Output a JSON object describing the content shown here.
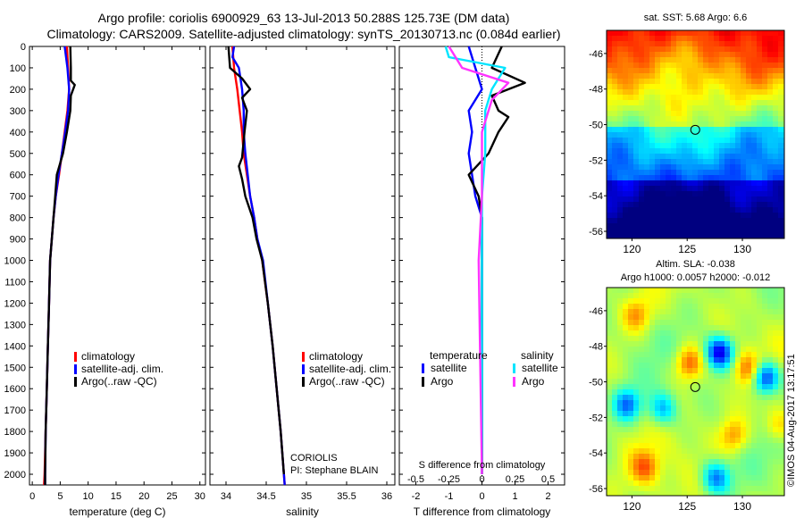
{
  "header": {
    "title_line1": "Argo profile: coriolis 6900929_63 13-Jul-2013 50.288S 125.73E (DM data)",
    "title_line2": "Climatology: CARS2009. Satellite-adjusted climatology: synTS_20130713.nc (0.084d earlier)"
  },
  "credit": "©IMOS 04-Aug-2017 13:17:51",
  "colors": {
    "climatology": "#ff0000",
    "satellite": "#0000ff",
    "argo": "#000000",
    "sal_satellite": "#00e5ff",
    "sal_argo": "#ff33ff"
  },
  "chart_data": [
    {
      "type": "line",
      "name": "temperature-panel",
      "xlabel": "temperature (deg C)",
      "xlim": [
        -0.5,
        31
      ],
      "xticks": [
        "0",
        "5",
        "10",
        "15",
        "20",
        "25",
        "30"
      ],
      "xtick_values": [
        0,
        5,
        10,
        15,
        20,
        25,
        30
      ],
      "ylim": [
        0,
        2050
      ],
      "yticks": [
        "0",
        "100",
        "200",
        "300",
        "400",
        "500",
        "600",
        "700",
        "800",
        "900",
        "1000",
        "1100",
        "1200",
        "1300",
        "1400",
        "1500",
        "1600",
        "1700",
        "1800",
        "1900",
        "2000"
      ],
      "legend": [
        "climatology",
        "satellite-adj. clim.",
        "Argo(..raw -QC)"
      ],
      "series": [
        {
          "name": "climatology",
          "color": "#ff0000",
          "points": [
            [
              6.2,
              0
            ],
            [
              6.4,
              100
            ],
            [
              6.6,
              200
            ],
            [
              6.3,
              300
            ],
            [
              5.8,
              400
            ],
            [
              5.3,
              500
            ],
            [
              4.8,
              600
            ],
            [
              4.2,
              700
            ],
            [
              3.8,
              800
            ],
            [
              3.5,
              900
            ],
            [
              3.2,
              1000
            ],
            [
              3.0,
              1200
            ],
            [
              2.8,
              1400
            ],
            [
              2.6,
              1600
            ],
            [
              2.4,
              1800
            ],
            [
              2.2,
              2000
            ],
            [
              2.1,
              2050
            ]
          ]
        },
        {
          "name": "satellite-adj. clim.",
          "color": "#0000ff",
          "points": [
            [
              5.8,
              0
            ],
            [
              6.3,
              100
            ],
            [
              6.6,
              200
            ],
            [
              6.4,
              300
            ],
            [
              5.9,
              400
            ],
            [
              5.3,
              500
            ],
            [
              4.7,
              600
            ],
            [
              4.2,
              700
            ],
            [
              3.8,
              800
            ],
            [
              3.5,
              900
            ],
            [
              3.2,
              1000
            ],
            [
              3.0,
              1200
            ],
            [
              2.8,
              1400
            ],
            [
              2.6,
              1600
            ],
            [
              2.4,
              1800
            ],
            [
              2.3,
              2000
            ],
            [
              2.3,
              2050
            ]
          ]
        },
        {
          "name": "Argo(..raw -QC)",
          "color": "#000000",
          "points": [
            [
              6.8,
              0
            ],
            [
              6.9,
              100
            ],
            [
              6.9,
              160
            ],
            [
              7.6,
              180
            ],
            [
              6.9,
              230
            ],
            [
              6.8,
              300
            ],
            [
              6.2,
              400
            ],
            [
              5.5,
              500
            ],
            [
              4.4,
              600
            ],
            [
              4.1,
              700
            ],
            [
              3.8,
              800
            ],
            [
              3.5,
              900
            ],
            [
              3.2,
              1000
            ],
            [
              3.0,
              1200
            ],
            [
              2.8,
              1400
            ],
            [
              2.6,
              1600
            ],
            [
              2.4,
              1800
            ],
            [
              2.3,
              2000
            ],
            [
              2.3,
              2050
            ]
          ]
        }
      ]
    },
    {
      "type": "line",
      "name": "salinity-panel",
      "xlabel": "salinity",
      "xlim": [
        33.8,
        36.1
      ],
      "xticks": [
        "34",
        "34.5",
        "35",
        "35.5",
        "36"
      ],
      "xtick_values": [
        34,
        34.5,
        35,
        35.5,
        36
      ],
      "ylim": [
        0,
        2050
      ],
      "legend": [
        "climatology",
        "satellite-adj. clim.",
        "Argo(..raw -QC)"
      ],
      "annotation": [
        "CORIOLIS",
        "PI: Stephane BLAIN"
      ],
      "series": [
        {
          "name": "climatology",
          "color": "#ff0000",
          "points": [
            [
              34.08,
              0
            ],
            [
              34.1,
              100
            ],
            [
              34.14,
              200
            ],
            [
              34.17,
              300
            ],
            [
              34.2,
              400
            ],
            [
              34.22,
              500
            ],
            [
              34.26,
              600
            ],
            [
              34.3,
              700
            ],
            [
              34.35,
              800
            ],
            [
              34.39,
              900
            ],
            [
              34.45,
              1000
            ],
            [
              34.52,
              1200
            ],
            [
              34.58,
              1400
            ],
            [
              34.63,
              1600
            ],
            [
              34.68,
              1800
            ],
            [
              34.72,
              2000
            ],
            [
              34.73,
              2050
            ]
          ]
        },
        {
          "name": "satellite-adj. clim.",
          "color": "#0000ff",
          "points": [
            [
              34.1,
              0
            ],
            [
              34.08,
              50
            ],
            [
              34.16,
              100
            ],
            [
              34.2,
              200
            ],
            [
              34.22,
              300
            ],
            [
              34.22,
              400
            ],
            [
              34.24,
              500
            ],
            [
              34.27,
              600
            ],
            [
              34.3,
              700
            ],
            [
              34.35,
              800
            ],
            [
              34.39,
              900
            ],
            [
              34.46,
              1000
            ],
            [
              34.52,
              1200
            ],
            [
              34.58,
              1400
            ],
            [
              34.63,
              1600
            ],
            [
              34.68,
              1800
            ],
            [
              34.72,
              2000
            ],
            [
              34.73,
              2050
            ]
          ]
        },
        {
          "name": "Argo(..raw -QC)",
          "color": "#000000",
          "points": [
            [
              34.03,
              0
            ],
            [
              34.05,
              100
            ],
            [
              34.2,
              150
            ],
            [
              34.3,
              200
            ],
            [
              34.2,
              240
            ],
            [
              34.26,
              300
            ],
            [
              34.23,
              400
            ],
            [
              34.2,
              520
            ],
            [
              34.16,
              560
            ],
            [
              34.2,
              620
            ],
            [
              34.24,
              700
            ],
            [
              34.33,
              800
            ],
            [
              34.38,
              900
            ],
            [
              34.45,
              1000
            ],
            [
              34.52,
              1200
            ],
            [
              34.58,
              1400
            ],
            [
              34.63,
              1600
            ],
            [
              34.68,
              1800
            ],
            [
              34.72,
              2000
            ]
          ]
        }
      ]
    },
    {
      "type": "line",
      "name": "difference-panel",
      "xlabel": "T difference from climatology",
      "xlabel_top": "S difference from climatology",
      "xlim": [
        -2.5,
        2.5
      ],
      "xticks": [
        "-2",
        "-1",
        "0",
        "1",
        "2"
      ],
      "xtick_values": [
        -2,
        -1,
        0,
        1,
        2
      ],
      "top_ticks": [
        "-0.5",
        "-0.25",
        "0",
        "0.25",
        "0.5"
      ],
      "top_tick_values": [
        -2,
        -1,
        0,
        1,
        2
      ],
      "ylim": [
        0,
        2050
      ],
      "legend_headers": [
        "temperature",
        "salinity"
      ],
      "legend": [
        "satellite",
        "Argo",
        "satellite",
        "Argo"
      ],
      "series": [
        {
          "name": "temperature satellite",
          "color": "#0000ff",
          "points": [
            [
              -0.4,
              0
            ],
            [
              -0.2,
              100
            ],
            [
              0.0,
              200
            ],
            [
              -0.4,
              300
            ],
            [
              -0.3,
              400
            ],
            [
              -0.4,
              500
            ],
            [
              -0.3,
              600
            ],
            [
              -0.2,
              700
            ],
            [
              0.0,
              800
            ],
            [
              0.0,
              1000
            ],
            [
              0.0,
              2000
            ]
          ]
        },
        {
          "name": "temperature Argo",
          "color": "#000000",
          "points": [
            [
              0.6,
              0
            ],
            [
              0.3,
              100
            ],
            [
              1.3,
              170
            ],
            [
              0.3,
              230
            ],
            [
              0.5,
              300
            ],
            [
              0.8,
              330
            ],
            [
              0.5,
              400
            ],
            [
              0.2,
              500
            ],
            [
              -0.4,
              600
            ],
            [
              -0.1,
              700
            ],
            [
              0.0,
              800
            ],
            [
              0.0,
              1000
            ],
            [
              0.0,
              2000
            ]
          ]
        },
        {
          "name": "salinity satellite",
          "color": "#00e5ff",
          "points": [
            [
              -1.1,
              0
            ],
            [
              -1.0,
              50
            ],
            [
              0.7,
              100
            ],
            [
              0.3,
              200
            ],
            [
              0.1,
              300
            ],
            [
              0.1,
              500
            ],
            [
              0.0,
              700
            ],
            [
              0.0,
              1000
            ],
            [
              0.0,
              2000
            ]
          ]
        },
        {
          "name": "salinity Argo",
          "color": "#ff33ff",
          "points": [
            [
              -1.0,
              0
            ],
            [
              -0.6,
              100
            ],
            [
              0.8,
              170
            ],
            [
              0.3,
              250
            ],
            [
              0.0,
              400
            ],
            [
              0.0,
              700
            ],
            [
              -0.1,
              1000
            ],
            [
              0.0,
              2000
            ]
          ]
        }
      ]
    },
    {
      "type": "heatmap",
      "name": "sst-map",
      "title": "sat. SST: 5.68 Argo: 6.6",
      "xticks": [
        "120",
        "125",
        "130"
      ],
      "xtick_values": [
        120,
        125,
        130
      ],
      "yticks": [
        "-46",
        "-48",
        "-50",
        "-52",
        "-54",
        "-56"
      ],
      "ytick_values": [
        -46,
        -48,
        -50,
        -52,
        -54,
        -56
      ],
      "xlim": [
        117.7,
        133.8
      ],
      "ylim": [
        -56.4,
        -44.7
      ],
      "marker": [
        125.73,
        -50.29
      ]
    },
    {
      "type": "heatmap",
      "name": "sla-map",
      "title_line1": "Altim. SLA: -0.038",
      "title_line2": "Argo h1000: 0.0057 h2000: -0.012",
      "xticks": [
        "120",
        "125",
        "130"
      ],
      "xtick_values": [
        120,
        125,
        130
      ],
      "yticks": [
        "-46",
        "-48",
        "-50",
        "-52",
        "-54",
        "-56"
      ],
      "ytick_values": [
        -46,
        -48,
        -50,
        -52,
        -54,
        -56
      ],
      "xlim": [
        117.7,
        133.8
      ],
      "ylim": [
        -56.4,
        -44.7
      ],
      "marker": [
        125.73,
        -50.29
      ]
    }
  ]
}
